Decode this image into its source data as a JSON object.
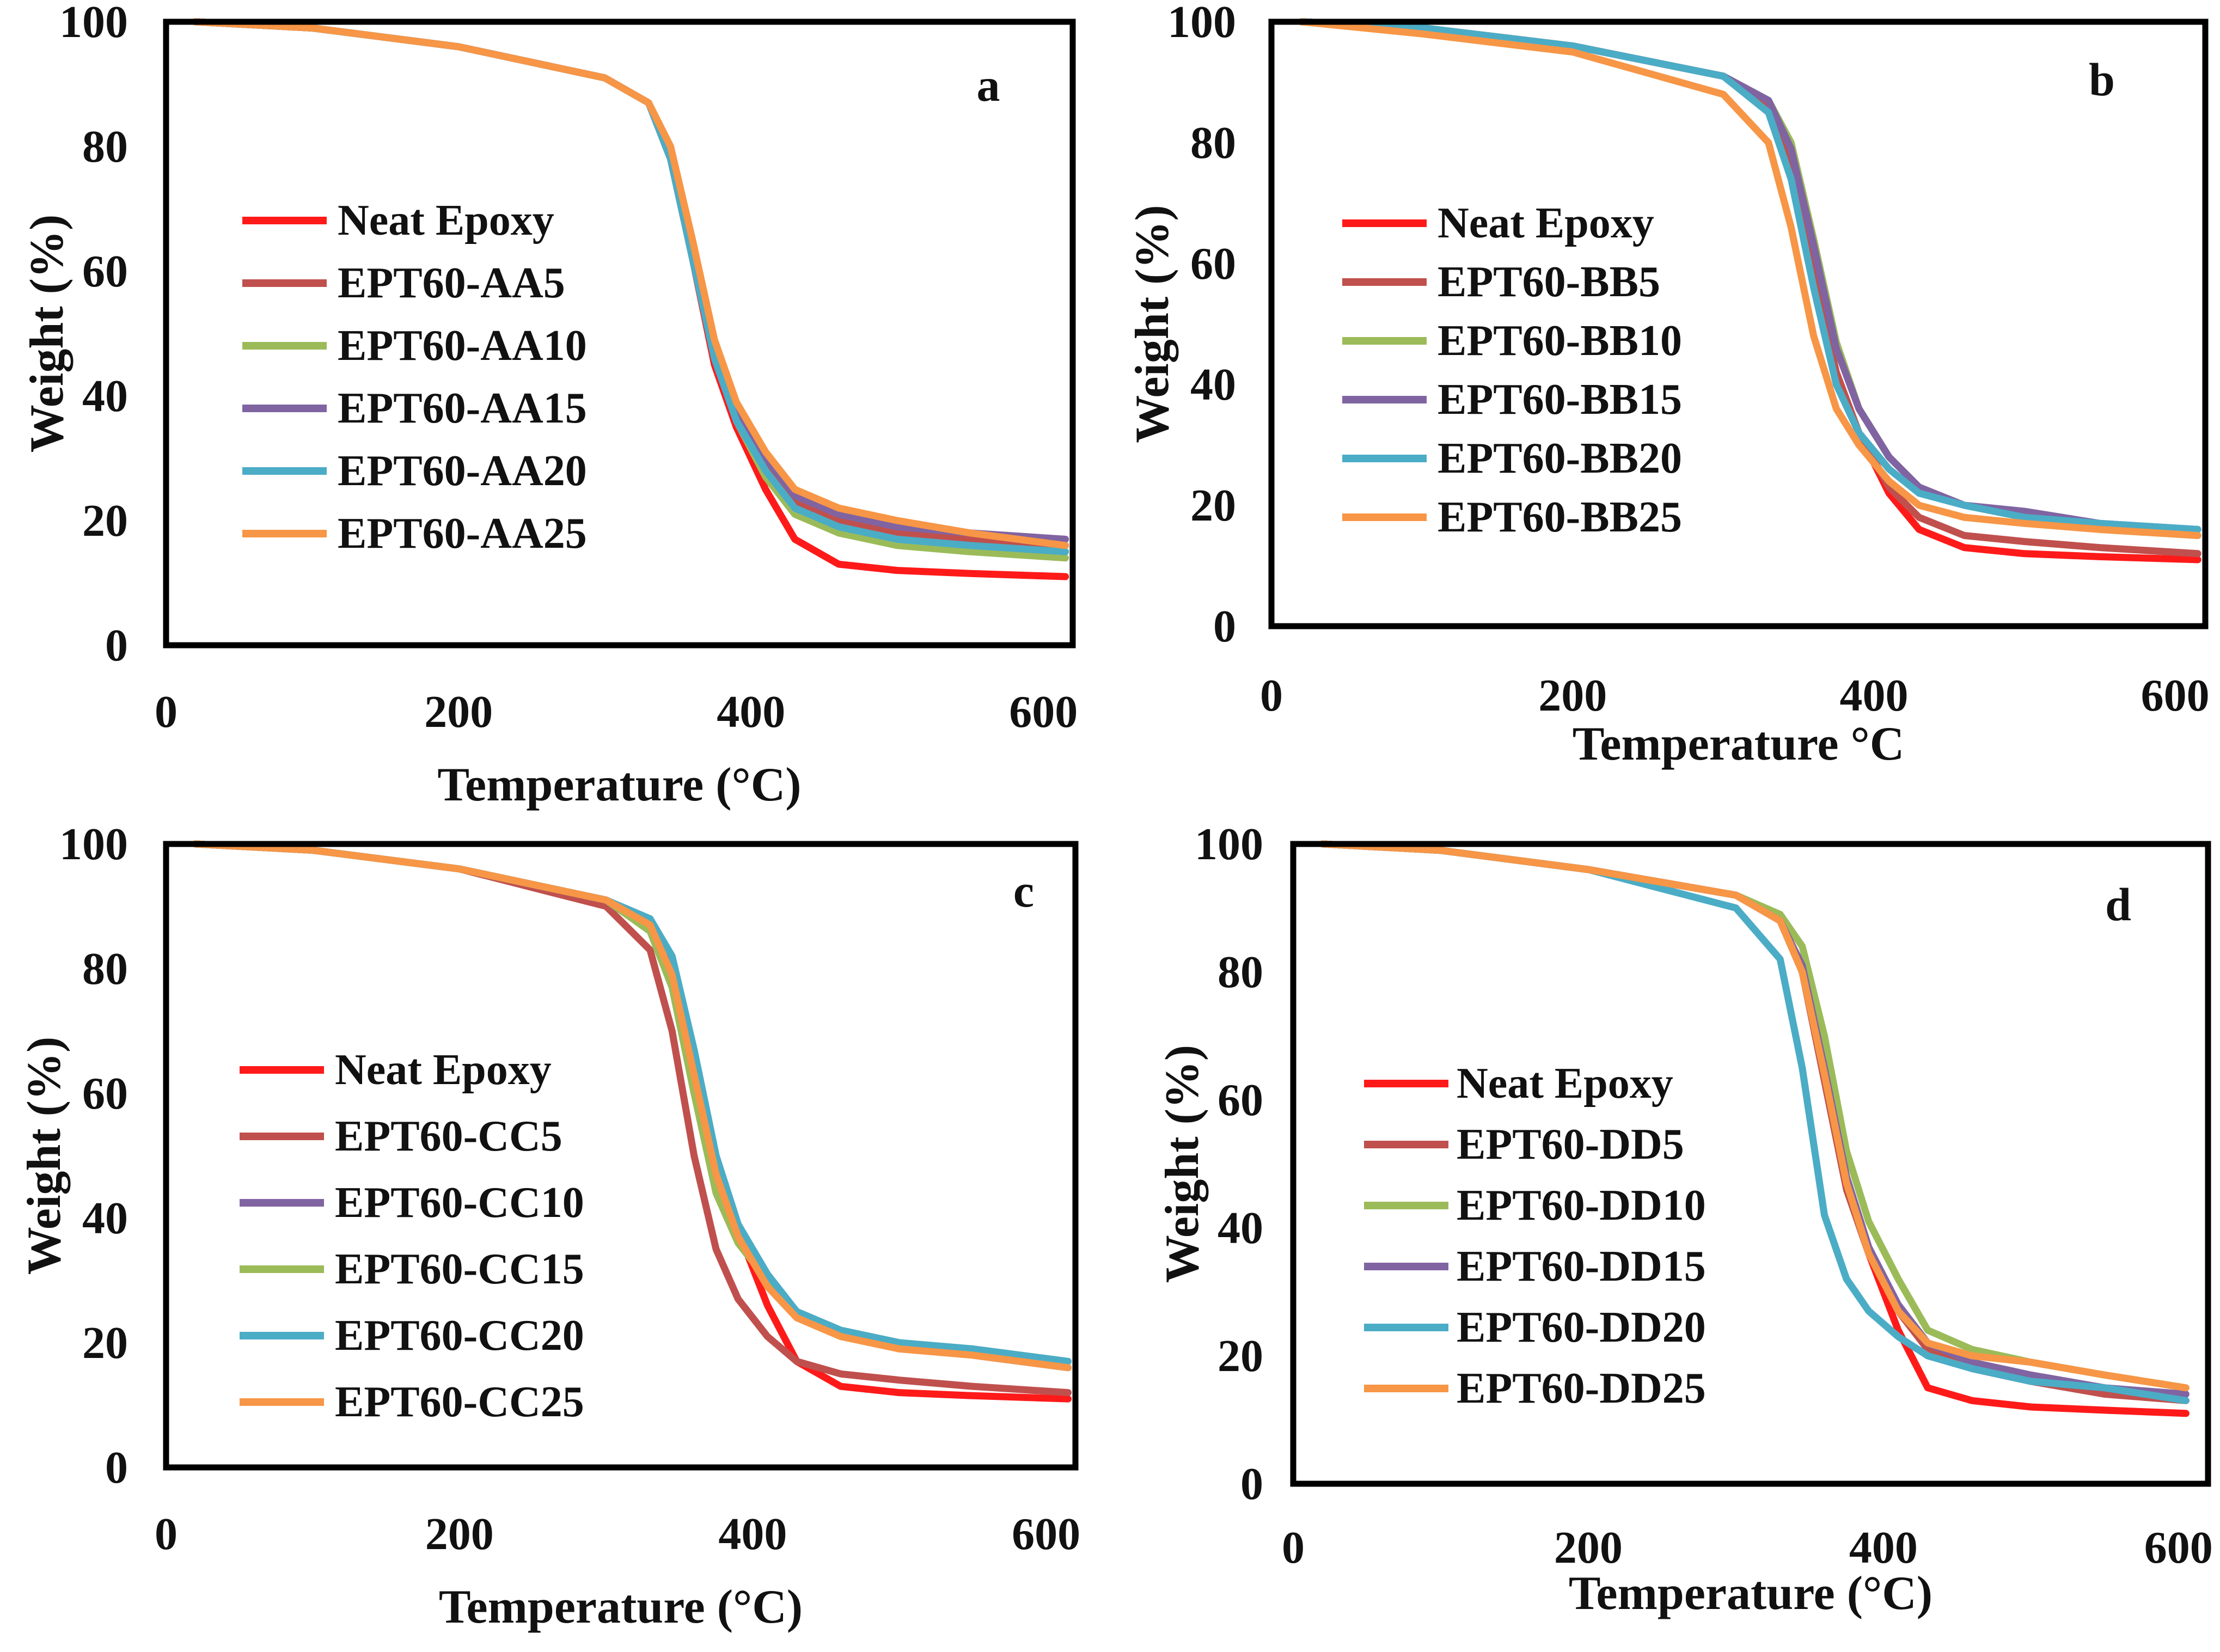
{
  "figure": {
    "colors": {
      "neat": "#ff1a1a",
      "s5": "#c0504d",
      "green": "#9bbb59",
      "purple": "#8064a2",
      "cyan": "#4bacc6",
      "orange": "#f79646"
    }
  },
  "chart_data": [
    {
      "type": "line",
      "panel_label": "a",
      "xlabel": "Temperature (°C)",
      "ylabel": "Weight (%)",
      "xlim": [
        0,
        620
      ],
      "ylim": [
        0,
        100
      ],
      "xticks": [
        "0",
        "200",
        "400",
        "600"
      ],
      "yticks": [
        "0",
        "20",
        "40",
        "60",
        "80",
        "100"
      ],
      "legend_position": "center-left",
      "series": [
        {
          "name": "Neat Epoxy",
          "color": "#ff1a1a",
          "x": [
            20,
            100,
            200,
            300,
            330,
            345,
            360,
            375,
            390,
            410,
            430,
            460,
            500,
            550,
            615
          ],
          "y": [
            100,
            99,
            96,
            91,
            87,
            78,
            62,
            45,
            35,
            25,
            17,
            13,
            12,
            11.5,
            11
          ]
        },
        {
          "name": "EPT60-AA5",
          "color": "#c0504d",
          "x": [
            20,
            100,
            200,
            300,
            330,
            345,
            360,
            375,
            390,
            410,
            430,
            460,
            500,
            550,
            615
          ],
          "y": [
            100,
            99,
            96,
            91,
            87,
            79,
            63,
            47,
            37,
            29,
            23,
            20,
            18,
            17,
            16
          ]
        },
        {
          "name": "EPT60-AA10",
          "color": "#9bbb59",
          "x": [
            20,
            100,
            200,
            300,
            330,
            345,
            360,
            375,
            390,
            410,
            430,
            460,
            500,
            550,
            615
          ],
          "y": [
            100,
            99,
            96,
            91,
            87,
            79,
            63,
            47,
            36,
            27,
            21,
            18,
            16,
            15,
            14
          ]
        },
        {
          "name": "EPT60-AA15",
          "color": "#8064a2",
          "x": [
            20,
            100,
            200,
            300,
            330,
            345,
            360,
            375,
            390,
            410,
            430,
            460,
            500,
            550,
            615
          ],
          "y": [
            100,
            99,
            96,
            91,
            87,
            79,
            64,
            48,
            38,
            30,
            24,
            21,
            19,
            18,
            17
          ]
        },
        {
          "name": "EPT60-AA20",
          "color": "#4bacc6",
          "x": [
            20,
            100,
            200,
            300,
            330,
            345,
            360,
            375,
            390,
            410,
            430,
            460,
            500,
            550,
            615
          ],
          "y": [
            100,
            99,
            96,
            91,
            87,
            78,
            62,
            46,
            36,
            28,
            22,
            19,
            17,
            16,
            15
          ]
        },
        {
          "name": "EPT60-AA25",
          "color": "#f79646",
          "x": [
            20,
            100,
            200,
            300,
            330,
            345,
            360,
            375,
            390,
            410,
            430,
            460,
            500,
            550,
            615
          ],
          "y": [
            100,
            99,
            96,
            91,
            87,
            80,
            65,
            49,
            39,
            31,
            25,
            22,
            20,
            18,
            16
          ]
        }
      ]
    },
    {
      "type": "line",
      "panel_label": "b",
      "xlabel": "Temperature °C",
      "ylabel": "Weight (%)",
      "xlim": [
        0,
        620
      ],
      "ylim": [
        0,
        100
      ],
      "xticks": [
        "0",
        "200",
        "400",
        "600"
      ],
      "yticks": [
        "0",
        "20",
        "40",
        "60",
        "80",
        "100"
      ],
      "legend_position": "center-left",
      "series": [
        {
          "name": "Neat Epoxy",
          "color": "#ff1a1a",
          "x": [
            20,
            100,
            200,
            300,
            330,
            345,
            360,
            375,
            390,
            410,
            430,
            460,
            500,
            550,
            615
          ],
          "y": [
            100,
            99,
            96,
            91,
            86,
            76,
            58,
            42,
            32,
            22,
            16,
            13,
            12,
            11.5,
            11
          ]
        },
        {
          "name": "EPT60-BB5",
          "color": "#c0504d",
          "x": [
            20,
            100,
            200,
            300,
            330,
            345,
            360,
            375,
            390,
            410,
            430,
            460,
            500,
            550,
            615
          ],
          "y": [
            100,
            99,
            96,
            91,
            86,
            76,
            58,
            42,
            32,
            23,
            18,
            15,
            14,
            13,
            12
          ]
        },
        {
          "name": "EPT60-BB10",
          "color": "#9bbb59",
          "x": [
            20,
            100,
            200,
            300,
            330,
            345,
            360,
            375,
            390,
            410,
            430,
            460,
            500,
            550,
            615
          ],
          "y": [
            100,
            99,
            96,
            91,
            87,
            80,
            64,
            47,
            36,
            28,
            23,
            20,
            18,
            16,
            15
          ]
        },
        {
          "name": "EPT60-BB15",
          "color": "#8064a2",
          "x": [
            20,
            100,
            200,
            300,
            330,
            345,
            360,
            375,
            390,
            410,
            430,
            460,
            500,
            550,
            615
          ],
          "y": [
            100,
            99,
            96,
            91,
            87,
            79,
            63,
            46,
            36,
            28,
            23,
            20,
            19,
            17,
            16
          ]
        },
        {
          "name": "EPT60-BB20",
          "color": "#4bacc6",
          "x": [
            20,
            100,
            200,
            300,
            330,
            345,
            360,
            375,
            390,
            410,
            430,
            460,
            500,
            550,
            615
          ],
          "y": [
            100,
            99,
            96,
            91,
            85,
            74,
            56,
            40,
            32,
            26,
            22,
            20,
            18,
            17,
            16
          ]
        },
        {
          "name": "EPT60-BB25",
          "color": "#f79646",
          "x": [
            20,
            100,
            200,
            300,
            330,
            345,
            360,
            375,
            390,
            410,
            430,
            460,
            500,
            550,
            615
          ],
          "y": [
            100,
            98,
            95,
            88,
            80,
            66,
            48,
            36,
            30,
            24,
            20,
            18,
            17,
            16,
            15
          ]
        }
      ]
    },
    {
      "type": "line",
      "panel_label": "c",
      "xlabel": "Temperature (°C)",
      "ylabel": "Weight (%)",
      "xlim": [
        0,
        620
      ],
      "ylim": [
        0,
        100
      ],
      "xticks": [
        "0",
        "200",
        "400",
        "600"
      ],
      "yticks": [
        "0",
        "20",
        "40",
        "60",
        "80",
        "100"
      ],
      "legend_position": "center-left",
      "series": [
        {
          "name": "Neat Epoxy",
          "color": "#ff1a1a",
          "x": [
            20,
            100,
            200,
            300,
            330,
            345,
            360,
            375,
            390,
            410,
            430,
            460,
            500,
            550,
            615
          ],
          "y": [
            100,
            99,
            96,
            91,
            87,
            80,
            64,
            48,
            38,
            26,
            17,
            13,
            12,
            11.5,
            11
          ]
        },
        {
          "name": "EPT60-CC5",
          "color": "#c0504d",
          "x": [
            20,
            100,
            200,
            300,
            330,
            345,
            360,
            375,
            390,
            410,
            430,
            460,
            500,
            550,
            615
          ],
          "y": [
            100,
            99,
            96,
            90,
            83,
            70,
            50,
            35,
            27,
            21,
            17,
            15,
            14,
            13,
            12
          ]
        },
        {
          "name": "EPT60-CC10",
          "color": "#8064a2",
          "x": [
            20,
            100,
            200,
            300,
            330,
            345,
            360,
            375,
            390,
            410,
            430,
            460,
            500,
            550,
            615
          ],
          "y": [
            100,
            99,
            96,
            91,
            87,
            81,
            66,
            49,
            38,
            30,
            25,
            22,
            20,
            18,
            16
          ]
        },
        {
          "name": "EPT60-CC15",
          "color": "#9bbb59",
          "x": [
            20,
            100,
            200,
            300,
            330,
            345,
            360,
            375,
            390,
            410,
            430,
            460,
            500,
            550,
            615
          ],
          "y": [
            100,
            99,
            96,
            91,
            86,
            77,
            60,
            44,
            36,
            30,
            25,
            22,
            20,
            19,
            17
          ]
        },
        {
          "name": "EPT60-CC20",
          "color": "#4bacc6",
          "x": [
            20,
            100,
            200,
            300,
            330,
            345,
            360,
            375,
            390,
            410,
            430,
            460,
            500,
            550,
            615
          ],
          "y": [
            100,
            99,
            96,
            91,
            88,
            82,
            67,
            50,
            39,
            31,
            25,
            22,
            20,
            19,
            17
          ]
        },
        {
          "name": "EPT60-CC25",
          "color": "#f79646",
          "x": [
            20,
            100,
            200,
            300,
            330,
            345,
            360,
            375,
            390,
            410,
            430,
            460,
            500,
            550,
            615
          ],
          "y": [
            100,
            99,
            96,
            91,
            87,
            79,
            63,
            47,
            37,
            29,
            24,
            21,
            19,
            18,
            16
          ]
        }
      ]
    },
    {
      "type": "line",
      "panel_label": "d",
      "xlabel": "Temperature (°C)",
      "ylabel": "Weight (%)",
      "xlim": [
        0,
        620
      ],
      "ylim": [
        0,
        100
      ],
      "xticks": [
        "0",
        "200",
        "400",
        "600"
      ],
      "yticks": [
        "0",
        "20",
        "40",
        "60",
        "80",
        "100"
      ],
      "legend_position": "center-left",
      "series": [
        {
          "name": "Neat Epoxy",
          "color": "#ff1a1a",
          "x": [
            20,
            100,
            200,
            300,
            330,
            345,
            360,
            375,
            390,
            410,
            430,
            460,
            500,
            550,
            605
          ],
          "y": [
            100,
            99,
            96,
            92,
            88,
            80,
            64,
            47,
            36,
            24,
            15,
            13,
            12,
            11.5,
            11
          ]
        },
        {
          "name": "EPT60-DD5",
          "color": "#c0504d",
          "x": [
            20,
            100,
            200,
            300,
            330,
            345,
            360,
            375,
            390,
            410,
            430,
            460,
            500,
            550,
            605
          ],
          "y": [
            100,
            99,
            96,
            92,
            88,
            80,
            63,
            46,
            36,
            27,
            21,
            18,
            16,
            14,
            13
          ]
        },
        {
          "name": "EPT60-DD10",
          "color": "#9bbb59",
          "x": [
            20,
            100,
            200,
            300,
            330,
            345,
            360,
            375,
            390,
            410,
            430,
            460,
            500,
            550,
            605
          ],
          "y": [
            100,
            99,
            96,
            92,
            89,
            84,
            70,
            52,
            41,
            32,
            24,
            21,
            19,
            17,
            15
          ]
        },
        {
          "name": "EPT60-DD15",
          "color": "#8064a2",
          "x": [
            20,
            100,
            200,
            300,
            330,
            345,
            360,
            375,
            390,
            410,
            430,
            460,
            500,
            550,
            605
          ],
          "y": [
            100,
            99,
            96,
            92,
            88,
            81,
            65,
            48,
            37,
            28,
            22,
            19,
            17,
            15,
            14
          ]
        },
        {
          "name": "EPT60-DD20",
          "color": "#4bacc6",
          "x": [
            20,
            100,
            200,
            300,
            330,
            345,
            360,
            375,
            390,
            410,
            430,
            460,
            500,
            550,
            605
          ],
          "y": [
            100,
            99,
            96,
            90,
            82,
            65,
            42,
            32,
            27,
            23,
            20,
            18,
            16,
            15,
            13
          ]
        },
        {
          "name": "EPT60-DD25",
          "color": "#f79646",
          "x": [
            20,
            100,
            200,
            300,
            330,
            345,
            360,
            375,
            390,
            410,
            430,
            460,
            500,
            550,
            605
          ],
          "y": [
            100,
            99,
            96,
            92,
            88,
            80,
            64,
            47,
            36,
            27,
            22,
            20,
            19,
            17,
            15
          ]
        }
      ]
    }
  ]
}
